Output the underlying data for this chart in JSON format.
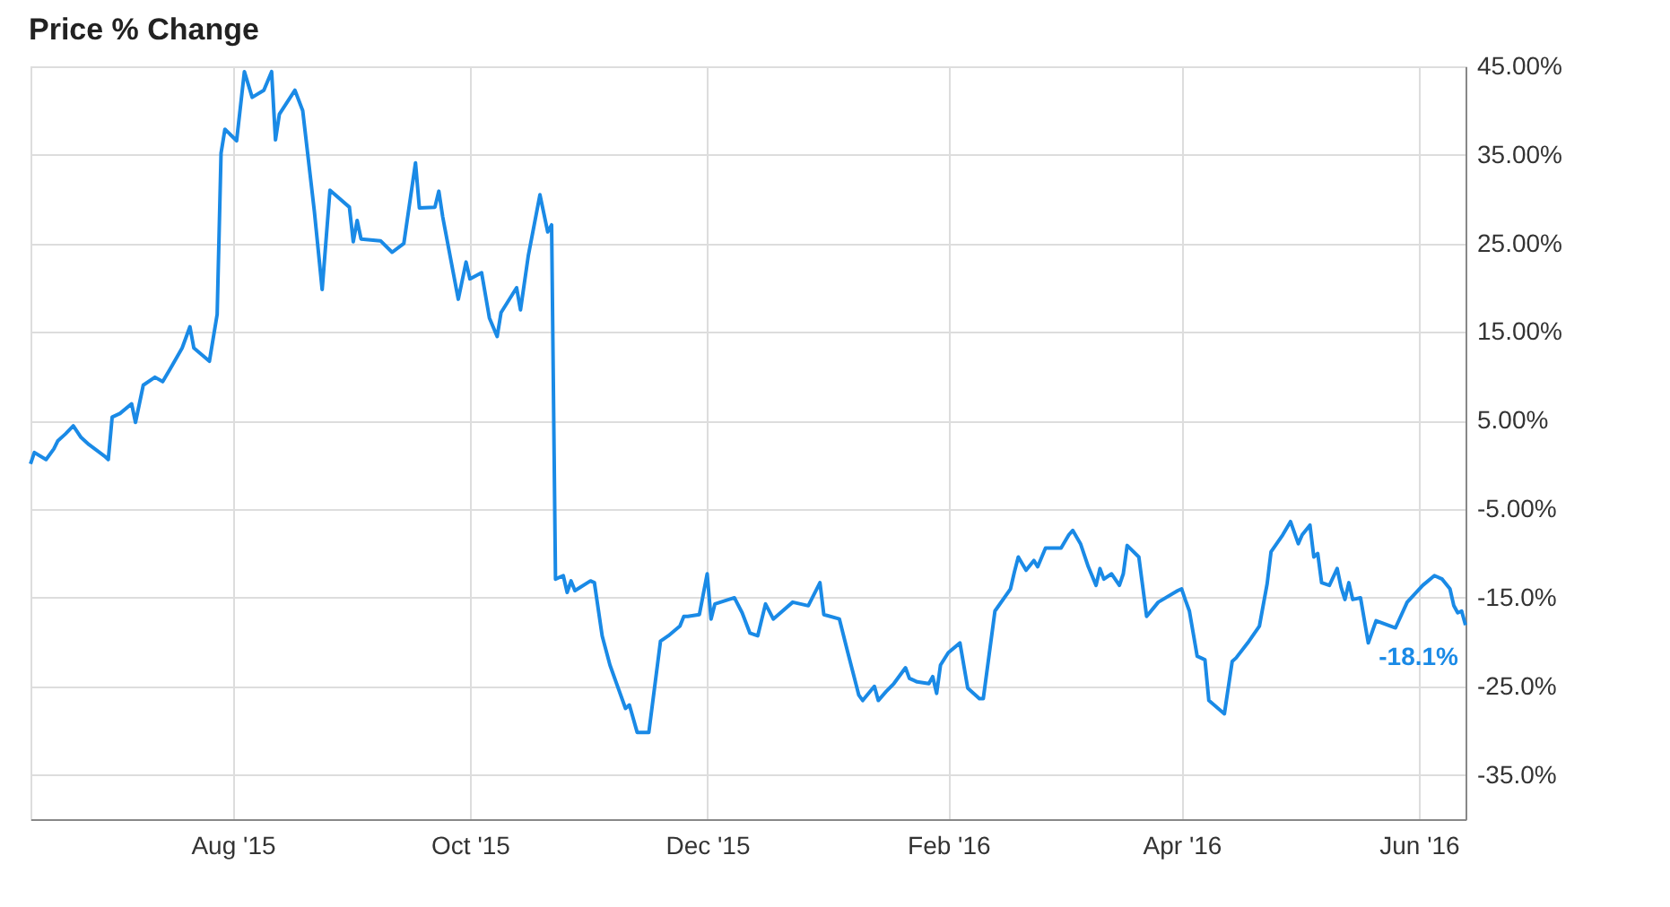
{
  "chart_data": {
    "type": "line",
    "title": "Price % Change",
    "x": [
      "2015-06-10",
      "2015-06-11",
      "2015-06-14",
      "2015-06-16",
      "2015-06-17",
      "2015-06-19",
      "2015-06-21",
      "2015-06-23",
      "2015-06-25",
      "2015-06-29",
      "2015-06-30",
      "2015-07-01",
      "2015-07-03",
      "2015-07-06",
      "2015-07-07",
      "2015-07-09",
      "2015-07-12",
      "2015-07-14",
      "2015-07-16",
      "2015-07-19",
      "2015-07-21",
      "2015-07-22",
      "2015-07-26",
      "2015-07-28",
      "2015-07-29",
      "2015-07-30",
      "2015-08-02",
      "2015-08-04",
      "2015-08-06",
      "2015-08-09",
      "2015-08-11",
      "2015-08-12",
      "2015-08-13",
      "2015-08-17",
      "2015-08-19",
      "2015-08-22",
      "2015-08-24",
      "2015-08-26",
      "2015-08-31",
      "2015-09-01",
      "2015-09-02",
      "2015-09-03",
      "2015-09-08",
      "2015-09-11",
      "2015-09-14",
      "2015-09-17",
      "2015-09-18",
      "2015-09-22",
      "2015-09-23",
      "2015-09-24",
      "2015-09-28",
      "2015-09-30",
      "2015-10-01",
      "2015-10-04",
      "2015-10-06",
      "2015-10-08",
      "2015-10-09",
      "2015-10-13",
      "2015-10-14",
      "2015-10-16",
      "2015-10-19",
      "2015-10-21",
      "2015-10-22",
      "2015-10-23",
      "2015-10-25",
      "2015-10-26",
      "2015-10-27",
      "2015-10-28",
      "2015-11-01",
      "2015-11-02",
      "2015-11-04",
      "2015-11-06",
      "2015-11-10",
      "2015-11-11",
      "2015-11-13",
      "2015-11-16",
      "2015-11-19",
      "2015-11-21",
      "2015-11-24",
      "2015-11-25",
      "2015-11-26",
      "2015-11-29",
      "2015-12-01",
      "2015-12-02",
      "2015-12-03",
      "2015-12-08",
      "2015-12-10",
      "2015-12-12",
      "2015-12-14",
      "2015-12-16",
      "2015-12-18",
      "2015-12-23",
      "2015-12-27",
      "2015-12-30",
      "2015-12-31",
      "2016-01-04",
      "2016-01-06",
      "2016-01-09",
      "2016-01-10",
      "2016-01-13",
      "2016-01-14",
      "2016-01-16",
      "2016-01-18",
      "2016-01-21",
      "2016-01-22",
      "2016-01-24",
      "2016-01-27",
      "2016-01-28",
      "2016-01-29",
      "2016-01-30",
      "2016-02-01",
      "2016-02-04",
      "2016-02-06",
      "2016-02-09",
      "2016-02-10",
      "2016-02-13",
      "2016-02-17",
      "2016-02-18",
      "2016-02-19",
      "2016-02-21",
      "2016-02-23",
      "2016-02-24",
      "2016-02-26",
      "2016-03-01",
      "2016-03-03",
      "2016-03-04",
      "2016-03-06",
      "2016-03-08",
      "2016-03-10",
      "2016-03-11",
      "2016-03-12",
      "2016-03-14",
      "2016-03-16",
      "2016-03-17",
      "2016-03-18",
      "2016-03-21",
      "2016-03-23",
      "2016-03-26",
      "2016-03-31",
      "2016-04-01",
      "2016-04-02",
      "2016-04-03",
      "2016-04-05",
      "2016-04-07",
      "2016-04-08",
      "2016-04-12",
      "2016-04-14",
      "2016-04-15",
      "2016-04-18",
      "2016-04-21",
      "2016-04-23",
      "2016-04-24",
      "2016-04-27",
      "2016-04-29",
      "2016-05-01",
      "2016-05-02",
      "2016-05-04",
      "2016-05-05",
      "2016-05-06",
      "2016-05-07",
      "2016-05-09",
      "2016-05-11",
      "2016-05-12",
      "2016-05-13",
      "2016-05-14",
      "2016-05-15",
      "2016-05-17",
      "2016-05-19",
      "2016-05-21",
      "2016-05-26",
      "2016-05-29",
      "2016-06-02",
      "2016-06-05",
      "2016-06-07",
      "2016-06-09",
      "2016-06-10",
      "2016-06-11",
      "2016-06-12",
      "2016-06-13"
    ],
    "series": [
      {
        "color": "#1a8ae6",
        "values": [
          0.1,
          1.4,
          0.6,
          1.8,
          2.7,
          3.5,
          4.4,
          3.1,
          2.3,
          1.0,
          0.6,
          5.4,
          5.8,
          6.9,
          4.8,
          9.0,
          9.9,
          9.4,
          10.9,
          13.2,
          15.6,
          13.2,
          11.7,
          17.0,
          35.2,
          37.9,
          36.6,
          44.4,
          41.5,
          42.3,
          44.4,
          36.7,
          39.6,
          42.3,
          40.0,
          28.6,
          19.8,
          31.0,
          29.1,
          25.2,
          27.6,
          25.5,
          25.3,
          24.0,
          25.0,
          34.1,
          29.0,
          29.1,
          30.9,
          28.0,
          18.7,
          22.9,
          21.0,
          21.7,
          16.6,
          14.5,
          17.2,
          20.0,
          17.5,
          23.6,
          30.5,
          26.3,
          27.1,
          -12.9,
          -12.5,
          -14.4,
          -13.1,
          -14.2,
          -13.1,
          -13.3,
          -19.3,
          -22.6,
          -27.5,
          -27.1,
          -30.2,
          -30.2,
          -19.9,
          -19.3,
          -18.2,
          -17.1,
          -17.1,
          -16.9,
          -12.3,
          -17.4,
          -15.7,
          -15.0,
          -16.7,
          -19.0,
          -19.3,
          -15.7,
          -17.4,
          -15.5,
          -15.9,
          -13.3,
          -16.9,
          -17.4,
          -20.9,
          -26.0,
          -26.6,
          -25.0,
          -26.6,
          -25.6,
          -24.7,
          -22.9,
          -24.1,
          -24.5,
          -24.7,
          -23.9,
          -25.8,
          -22.6,
          -21.2,
          -20.1,
          -25.2,
          -26.4,
          -26.4,
          -16.5,
          -14.0,
          -12.1,
          -10.4,
          -11.9,
          -10.8,
          -11.5,
          -9.4,
          -9.4,
          -7.9,
          -7.4,
          -8.9,
          -11.5,
          -13.6,
          -11.7,
          -12.9,
          -12.3,
          -13.6,
          -12.3,
          -9.1,
          -10.4,
          -17.1,
          -15.5,
          -14.2,
          -14.0,
          -15.3,
          -16.5,
          -21.6,
          -22.0,
          -26.6,
          -28.1,
          -22.2,
          -21.8,
          -20.1,
          -18.2,
          -13.4,
          -9.8,
          -7.9,
          -6.4,
          -8.9,
          -7.9,
          -6.8,
          -10.4,
          -10.0,
          -13.3,
          -13.6,
          -11.7,
          -13.8,
          -15.2,
          -13.3,
          -15.2,
          -15.0,
          -20.1,
          -17.6,
          -18.4,
          -15.5,
          -13.6,
          -12.5,
          -12.9,
          -14.0,
          -15.9,
          -16.7,
          -16.5,
          -18.1
        ]
      }
    ],
    "xlim": [
      "2015-06-10",
      "2016-06-13"
    ],
    "xticks": [
      {
        "value": "2015-08-01",
        "label": "Aug '15"
      },
      {
        "value": "2015-10-01",
        "label": "Oct '15"
      },
      {
        "value": "2015-12-01",
        "label": "Dec '15"
      },
      {
        "value": "2016-02-01",
        "label": "Feb '16"
      },
      {
        "value": "2016-04-01",
        "label": "Apr '16"
      },
      {
        "value": "2016-06-01",
        "label": "Jun '16"
      }
    ],
    "ylim": [
      -40,
      45
    ],
    "yticks": [
      {
        "value": 45,
        "label": "45.00%"
      },
      {
        "value": 35,
        "label": "35.00%"
      },
      {
        "value": 25,
        "label": "25.00%"
      },
      {
        "value": 15,
        "label": "15.00%"
      },
      {
        "value": 5,
        "label": "5.00%"
      },
      {
        "value": -5,
        "label": "-5.00%"
      },
      {
        "value": -15,
        "label": "-15.0%"
      },
      {
        "value": -25,
        "label": "-25.0%"
      },
      {
        "value": -35,
        "label": "-35.0%"
      }
    ],
    "annotations": [
      {
        "text": "-18.1%",
        "x": "2016-06-13",
        "y": -18.1
      }
    ],
    "grid": true,
    "legend": false,
    "marker": "none",
    "line_style": "solid"
  }
}
